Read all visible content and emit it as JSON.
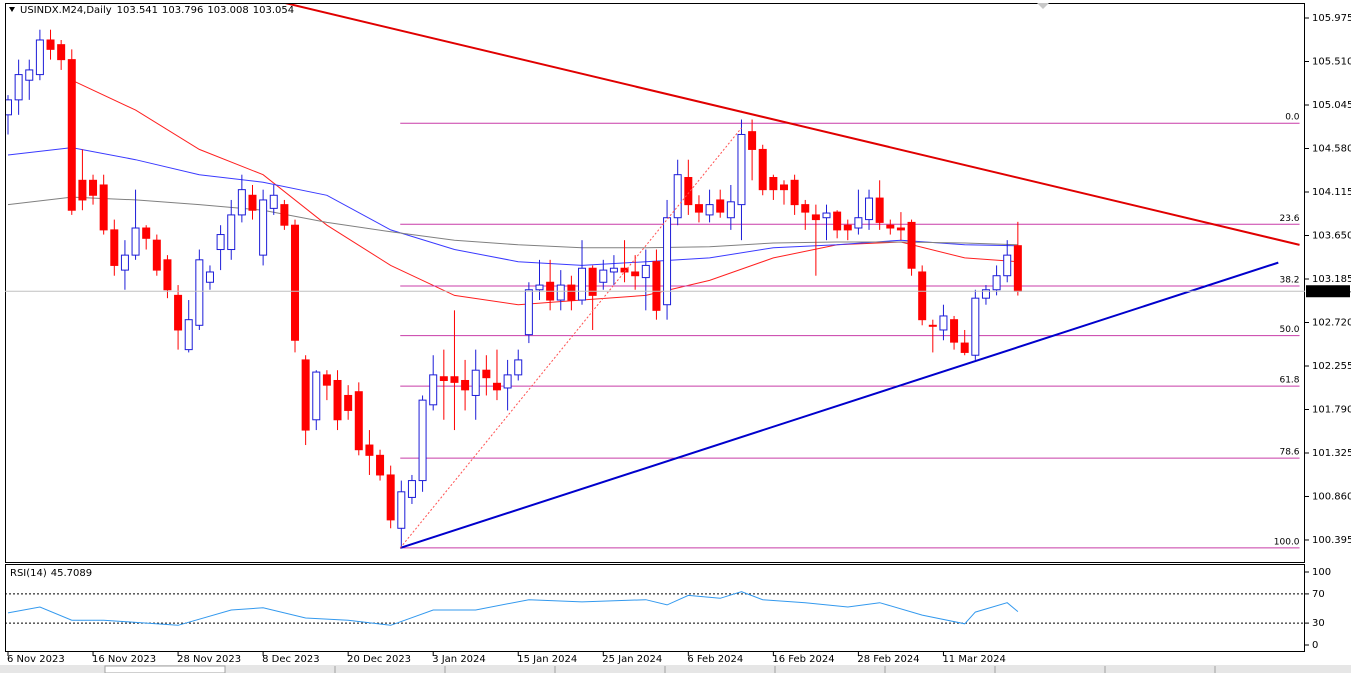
{
  "chart_data": [
    {
      "type": "candlestick",
      "title": "USINDX.M24,Daily",
      "categories": [
        "6 Nov 2023",
        null,
        null,
        null,
        null,
        null,
        null,
        null,
        "16 Nov 2023",
        null,
        null,
        null,
        null,
        null,
        null,
        null,
        "28 Nov 2023",
        null,
        null,
        null,
        null,
        null,
        null,
        null,
        "8 Dec 2023",
        null,
        null,
        null,
        null,
        null,
        null,
        null,
        "20 Dec 2023",
        null,
        null,
        null,
        null,
        null,
        null,
        null,
        "3 Jan 2024",
        null,
        null,
        null,
        null,
        null,
        null,
        null,
        "15 Jan 2024",
        null,
        null,
        null,
        null,
        null,
        null,
        null,
        "25 Jan 2024",
        null,
        null,
        null,
        null,
        null,
        null,
        null,
        "6 Feb 2024",
        null,
        null,
        null,
        null,
        null,
        null,
        null,
        "16 Feb 2024",
        null,
        null,
        null,
        null,
        null,
        null,
        null,
        "28 Feb 2024",
        null,
        null,
        null,
        null,
        null,
        null,
        null,
        "11 Mar 2024",
        null,
        null,
        null,
        null,
        null,
        null,
        null
      ],
      "open": [
        104.94,
        105.1,
        105.31,
        105.37,
        105.74,
        105.69,
        105.53,
        104.24,
        104.24,
        104.19,
        103.71,
        103.28,
        103.44,
        103.73,
        103.6,
        103.39,
        103.01,
        102.43,
        102.69,
        103.15,
        103.5,
        103.5,
        103.87,
        104.08,
        103.44,
        103.94,
        103.98,
        103.76,
        102.32,
        101.68,
        102.16,
        102.1,
        101.94,
        101.98,
        101.41,
        101.3,
        101.09,
        100.52,
        100.85,
        101.03,
        101.84,
        102.14,
        102.14,
        102.1,
        101.94,
        102.21,
        102.07,
        102.02,
        102.16,
        102.59,
        103.07,
        103.15,
        102.96,
        103.12,
        102.96,
        103.3,
        103.15,
        103.26,
        103.3,
        103.26,
        103.2,
        103.37,
        102.91,
        103.84,
        104.27,
        103.98,
        103.87,
        104.03,
        103.84,
        103.98,
        104.76,
        104.57,
        104.27,
        104.19,
        104.24,
        103.98,
        103.87,
        103.84,
        103.9,
        103.76,
        103.73,
        103.82,
        104.05,
        103.76,
        103.73,
        103.79,
        103.26,
        102.69,
        102.64,
        102.75,
        102.5,
        102.37,
        102.98,
        103.07,
        103.22,
        103.541
      ],
      "high": [
        105.15,
        105.53,
        105.53,
        105.85,
        105.85,
        105.74,
        105.64,
        104.57,
        104.3,
        104.3,
        103.82,
        103.6,
        104.14,
        103.76,
        103.66,
        103.44,
        103.12,
        102.96,
        103.5,
        103.33,
        103.76,
        104.03,
        104.3,
        104.19,
        104.14,
        104.19,
        104.03,
        103.82,
        102.37,
        102.21,
        102.21,
        102.21,
        102.05,
        102.08,
        101.57,
        101.36,
        101.19,
        101.03,
        101.09,
        101.94,
        102.37,
        102.43,
        102.85,
        102.32,
        102.43,
        102.37,
        102.43,
        102.32,
        102.43,
        103.15,
        103.39,
        103.39,
        103.28,
        103.22,
        103.6,
        103.33,
        103.39,
        103.44,
        103.6,
        103.44,
        103.5,
        103.5,
        104.03,
        104.46,
        104.46,
        104.08,
        104.14,
        104.14,
        104.19,
        104.89,
        104.89,
        104.62,
        104.3,
        104.24,
        104.3,
        104.03,
        103.98,
        103.98,
        103.92,
        103.82,
        104.14,
        104.14,
        104.24,
        103.82,
        103.9,
        103.82,
        103.33,
        102.75,
        102.91,
        102.79,
        102.64,
        103.07,
        103.12,
        103.33,
        103.6,
        103.796
      ],
      "low": [
        104.73,
        104.94,
        105.1,
        105.31,
        105.53,
        105.42,
        103.87,
        103.92,
        103.98,
        103.66,
        103.22,
        103.07,
        103.39,
        103.5,
        103.22,
        102.98,
        102.43,
        102.4,
        102.64,
        103.07,
        103.28,
        103.39,
        103.79,
        103.82,
        103.33,
        103.87,
        103.71,
        102.4,
        101.41,
        101.57,
        101.89,
        101.57,
        101.68,
        101.3,
        101.09,
        101.03,
        100.52,
        100.31,
        100.78,
        100.91,
        101.78,
        101.68,
        101.57,
        101.78,
        101.68,
        101.94,
        101.89,
        101.78,
        102.1,
        102.5,
        102.96,
        102.85,
        102.85,
        102.85,
        102.91,
        102.64,
        103.07,
        103.12,
        103.15,
        103.07,
        102.85,
        102.75,
        102.75,
        103.76,
        103.87,
        103.79,
        103.79,
        103.84,
        103.71,
        103.6,
        104.24,
        104.08,
        104.03,
        103.98,
        103.87,
        103.71,
        103.22,
        103.6,
        103.62,
        103.6,
        103.66,
        103.71,
        103.71,
        103.66,
        103.6,
        103.22,
        102.69,
        102.4,
        102.53,
        102.43,
        102.37,
        102.32,
        102.91,
        103.01,
        103.15,
        103.008
      ],
      "close": [
        105.1,
        105.37,
        105.42,
        105.74,
        105.64,
        105.53,
        103.92,
        104.03,
        104.08,
        103.71,
        103.33,
        103.44,
        103.73,
        103.62,
        103.28,
        103.07,
        102.64,
        102.75,
        103.39,
        103.26,
        103.66,
        103.87,
        104.14,
        103.92,
        104.03,
        104.08,
        103.76,
        102.53,
        101.57,
        102.19,
        102.05,
        101.68,
        101.78,
        101.36,
        101.3,
        101.09,
        100.61,
        100.91,
        101.03,
        101.89,
        102.16,
        102.1,
        102.08,
        102.0,
        102.21,
        102.13,
        102.0,
        102.16,
        102.32,
        103.07,
        103.12,
        102.96,
        103.12,
        102.96,
        103.3,
        103.01,
        103.28,
        103.3,
        103.26,
        103.22,
        103.33,
        102.85,
        103.84,
        104.3,
        103.98,
        103.9,
        103.98,
        103.9,
        104.01,
        104.73,
        104.57,
        104.14,
        104.14,
        104.14,
        103.98,
        103.9,
        103.82,
        103.89,
        103.71,
        103.71,
        103.84,
        104.05,
        103.79,
        103.73,
        103.71,
        103.3,
        102.75,
        102.68,
        102.79,
        102.51,
        102.4,
        102.98,
        103.07,
        103.22,
        103.44,
        103.054
      ],
      "up_color": "#1c1cd8",
      "down_color": "#ff0000",
      "ylim": [
        100.181,
        106.114
      ],
      "yticks": [
        105.975,
        {
          "value": 105.51,
          "label": "105.510"
        },
        105.045,
        {
          "value": 104.58,
          "label": "104.580"
        },
        104.115,
        {
          "value": 103.65,
          "label": "103.650"
        },
        103.185,
        {
          "value": 102.72,
          "label": "102.720"
        },
        102.255,
        {
          "value": 101.79,
          "label": "101.790"
        },
        101.325,
        {
          "value": 100.86,
          "label": "100.860"
        },
        100.395
      ],
      "lines": [
        {
          "color": "#ff2020",
          "x": [
            6,
            12,
            18,
            24,
            30,
            36,
            42,
            48,
            54,
            60,
            66,
            72,
            78,
            84,
            90,
            95
          ],
          "values": [
            105.31,
            104.99,
            104.57,
            104.3,
            103.76,
            103.33,
            103.01,
            102.91,
            102.96,
            103.01,
            103.17,
            103.41,
            103.55,
            103.58,
            103.41,
            103.37
          ]
        },
        {
          "color": "#3a3aff",
          "x": [
            0,
            6,
            12,
            18,
            24,
            30,
            36,
            42,
            48,
            54,
            60,
            66,
            72,
            78,
            84,
            90,
            95
          ],
          "values": [
            104.51,
            104.59,
            104.46,
            104.3,
            104.22,
            104.08,
            103.71,
            103.5,
            103.37,
            103.33,
            103.37,
            103.41,
            103.52,
            103.55,
            103.6,
            103.55,
            103.54
          ]
        },
        {
          "color": "#808080",
          "x": [
            0,
            6,
            12,
            18,
            24,
            30,
            36,
            42,
            48,
            54,
            60,
            66,
            72,
            78,
            84,
            90,
            95
          ],
          "values": [
            103.98,
            104.06,
            104.03,
            103.98,
            103.92,
            103.79,
            103.69,
            103.6,
            103.55,
            103.52,
            103.52,
            103.53,
            103.57,
            103.58,
            103.58,
            103.57,
            103.55
          ]
        }
      ],
      "trendlines": [
        {
          "color": "#e00000",
          "width": 2,
          "dashed": false,
          "points": [
            [
              25.9,
              106.14
            ],
            [
              121.5,
              103.55
            ]
          ]
        },
        {
          "color": "#0000cc",
          "width": 2,
          "dashed": false,
          "points": [
            [
              36.9,
              100.31
            ],
            [
              119.5,
              103.36
            ]
          ]
        },
        {
          "color": "#ff5050",
          "width": 1,
          "dashed": true,
          "points": [
            [
              36.9,
              100.31
            ],
            [
              69,
              104.8
            ]
          ]
        }
      ],
      "fibonacci": {
        "color": "#c83ca8",
        "start_x": 36.9,
        "end_x": 121.5,
        "levels": [
          {
            "ratio": {
              "value": 0,
              "label": "0.0"
            },
            "price": 104.85
          },
          {
            "ratio": 23.6,
            "price": 103.77
          },
          {
            "ratio": 38.2,
            "price": 103.11
          },
          {
            "ratio": {
              "value": 50,
              "label": "50.0"
            },
            "price": 102.58
          },
          {
            "ratio": 61.8,
            "price": 102.04
          },
          {
            "ratio": 78.6,
            "price": 101.27
          },
          {
            "ratio": {
              "value": 100,
              "label": "100.0"
            },
            "price": 100.31
          }
        ]
      }
    },
    {
      "type": "line",
      "title": "RSI(14)",
      "color": "#3399ee",
      "x": [
        0,
        3,
        6,
        9,
        12,
        16,
        21,
        24,
        28,
        32,
        36,
        40,
        44,
        49,
        54,
        60,
        62,
        64,
        67,
        69,
        71,
        75,
        79,
        82,
        86,
        90,
        91,
        94,
        95
      ],
      "values": [
        44,
        52,
        34,
        34,
        31,
        27,
        48,
        51,
        37,
        34,
        27,
        48,
        48,
        62,
        59,
        62,
        55,
        68,
        64,
        73,
        62,
        58,
        52,
        58,
        41,
        29,
        45,
        58,
        45.7089
      ],
      "ylim": [
        -9.6,
        109.6
      ],
      "yticks": [
        100,
        70,
        30,
        0
      ],
      "levels": [
        70,
        30
      ]
    }
  ]
}
